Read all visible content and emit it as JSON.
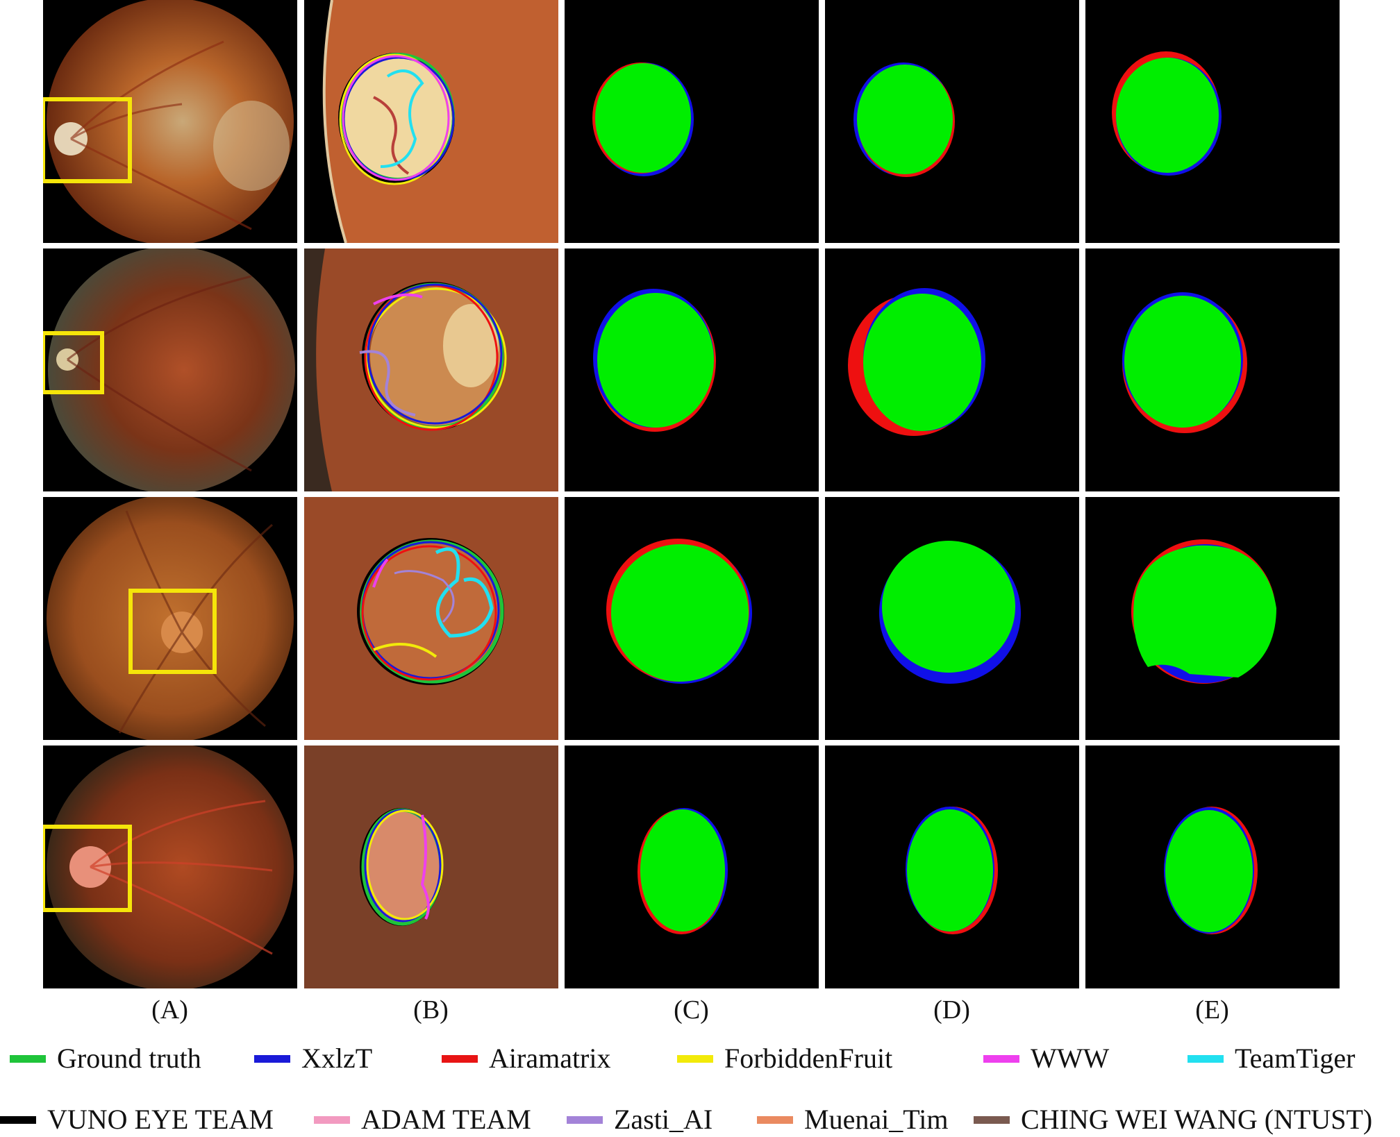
{
  "columns": [
    {
      "id": "A",
      "label": "(A)"
    },
    {
      "id": "B",
      "label": "(B)"
    },
    {
      "id": "C",
      "label": "(C)"
    },
    {
      "id": "D",
      "label": "(D)"
    },
    {
      "id": "E",
      "label": "(E)"
    }
  ],
  "legend": [
    {
      "label": "Ground truth",
      "color": "#1fc43a"
    },
    {
      "label": "XxlzT",
      "color": "#1a1ad8"
    },
    {
      "label": "Airamatrix",
      "color": "#e81414"
    },
    {
      "label": "ForbiddenFruit",
      "color": "#f2ea0a"
    },
    {
      "label": "WWW",
      "color": "#ee40ee"
    },
    {
      "label": "TeamTiger",
      "color": "#22e0f0"
    },
    {
      "label": "VUNO EYE TEAM",
      "color": "#000000"
    },
    {
      "label": "ADAM TEAM",
      "color": "#f29ac0"
    },
    {
      "label": "Zasti_AI",
      "color": "#a383d8"
    },
    {
      "label": "Muenai_Tim",
      "color": "#ea8a60"
    },
    {
      "label": "CHING WEI WANG (NTUST)",
      "color": "#7a5a50"
    }
  ],
  "mask_colors": {
    "overlap": "#00ee00",
    "false_negative": "#1010e8",
    "false_positive": "#ee1010",
    "background": "#000000",
    "highlight_box": "#f5e50a"
  }
}
